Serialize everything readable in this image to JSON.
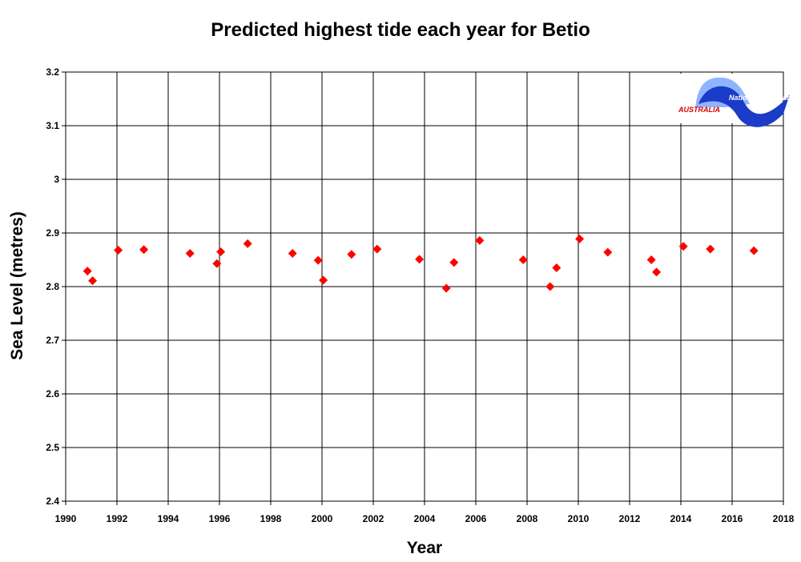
{
  "chart_data": {
    "type": "scatter",
    "title": "Predicted highest tide each year for Betio",
    "xlabel": "Year",
    "ylabel": "Sea Level (metres)",
    "xlim": [
      1990,
      2018
    ],
    "ylim": [
      2.4,
      3.2
    ],
    "x_ticks": [
      "1990",
      "1992",
      "1994",
      "1996",
      "1998",
      "2000",
      "2002",
      "2004",
      "2006",
      "2008",
      "2010",
      "2012",
      "2014",
      "2016",
      "2018"
    ],
    "y_ticks": [
      "2.4",
      "2.5",
      "2.6",
      "2.7",
      "2.8",
      "2.9",
      "3",
      "3.1",
      "3.2"
    ],
    "grid": true,
    "marker_color": "#ff0000",
    "marker_shape": "diamond",
    "points": [
      {
        "x": 1990.85,
        "y": 2.829
      },
      {
        "x": 1991.05,
        "y": 2.811
      },
      {
        "x": 1992.05,
        "y": 2.868
      },
      {
        "x": 1993.05,
        "y": 2.869
      },
      {
        "x": 1994.85,
        "y": 2.862
      },
      {
        "x": 1995.9,
        "y": 2.843
      },
      {
        "x": 1996.05,
        "y": 2.865
      },
      {
        "x": 1997.1,
        "y": 2.88
      },
      {
        "x": 1998.85,
        "y": 2.862
      },
      {
        "x": 1999.85,
        "y": 2.849
      },
      {
        "x": 2000.05,
        "y": 2.812
      },
      {
        "x": 2001.15,
        "y": 2.86
      },
      {
        "x": 2002.15,
        "y": 2.87
      },
      {
        "x": 2003.8,
        "y": 2.851
      },
      {
        "x": 2004.85,
        "y": 2.797
      },
      {
        "x": 2005.15,
        "y": 2.845
      },
      {
        "x": 2006.15,
        "y": 2.886
      },
      {
        "x": 2007.85,
        "y": 2.85
      },
      {
        "x": 2008.9,
        "y": 2.8
      },
      {
        "x": 2009.15,
        "y": 2.835
      },
      {
        "x": 2010.05,
        "y": 2.889
      },
      {
        "x": 2011.15,
        "y": 2.864
      },
      {
        "x": 2012.85,
        "y": 2.85
      },
      {
        "x": 2013.05,
        "y": 2.827
      },
      {
        "x": 2014.1,
        "y": 2.875
      },
      {
        "x": 2015.15,
        "y": 2.87
      },
      {
        "x": 2016.85,
        "y": 2.867
      }
    ]
  },
  "logo": {
    "name": "National Tidal Facility",
    "country": "AUSTRALIA",
    "primary_color": "#1a3cc8",
    "light_color": "#8fb4ff",
    "accent_color": "#d40000"
  }
}
